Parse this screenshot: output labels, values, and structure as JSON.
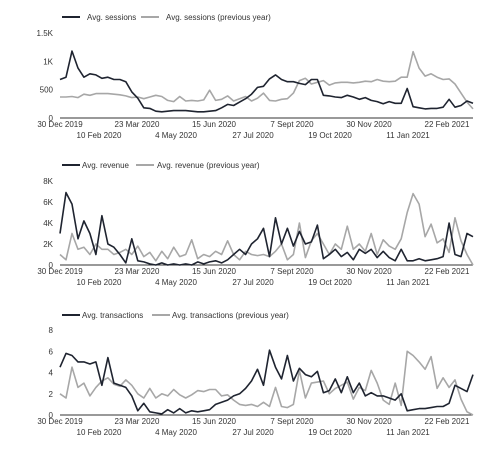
{
  "colors": {
    "current": "#1f2430",
    "previous": "#a7a7a7",
    "axis": "#333333",
    "label": "#333333"
  },
  "chart_data": [
    {
      "type": "line",
      "title": "",
      "xlabel": "",
      "ylabel": "",
      "legend_position": "top-left",
      "grid": false,
      "x_tick_labels": [
        "30 Dec 2019",
        "10 Feb 2020",
        "23 Mar 2020",
        "4 May 2020",
        "15 Jun 2020",
        "27 Jul 2020",
        "7 Sept 2020",
        "19 Oct 2020",
        "30 Nov 2020",
        "11 Jan 2021",
        "22 Feb 2021"
      ],
      "y_ticks": [
        0,
        500,
        1000,
        1500
      ],
      "y_tick_labels": [
        "0",
        "500",
        "1K",
        "1.5K"
      ],
      "ylim": [
        0,
        1500
      ],
      "series": [
        {
          "name": "Avg. sessions",
          "values": [
            680,
            720,
            1180,
            880,
            720,
            780,
            760,
            700,
            720,
            680,
            680,
            640,
            460,
            350,
            180,
            170,
            120,
            110,
            120,
            130,
            130,
            130,
            120,
            110,
            110,
            120,
            130,
            180,
            240,
            220,
            280,
            340,
            420,
            540,
            560,
            690,
            760,
            680,
            640,
            640,
            610,
            590,
            680,
            680,
            400,
            390,
            370,
            360,
            400,
            370,
            330,
            360,
            310,
            290,
            250,
            290,
            260,
            260,
            520,
            200,
            180,
            160,
            170,
            170,
            190,
            330,
            190,
            220,
            300,
            260
          ]
        },
        {
          "name": "Avg. sessions (previous year)",
          "values": [
            370,
            370,
            380,
            360,
            420,
            400,
            430,
            430,
            430,
            420,
            410,
            390,
            360,
            370,
            340,
            370,
            400,
            380,
            310,
            290,
            380,
            300,
            310,
            300,
            320,
            490,
            310,
            330,
            390,
            300,
            340,
            380,
            300,
            350,
            440,
            310,
            300,
            330,
            340,
            440,
            660,
            700,
            600,
            630,
            660,
            580,
            620,
            630,
            630,
            620,
            630,
            650,
            640,
            680,
            650,
            640,
            650,
            720,
            720,
            1170,
            880,
            740,
            780,
            720,
            680,
            690,
            600,
            440,
            280,
            160
          ]
        }
      ]
    },
    {
      "type": "line",
      "title": "",
      "xlabel": "",
      "ylabel": "",
      "legend_position": "top-left",
      "grid": false,
      "x_tick_labels": [
        "30 Dec 2019",
        "10 Feb 2020",
        "23 Mar 2020",
        "4 May 2020",
        "15 Jun 2020",
        "27 Jul 2020",
        "7 Sept 2020",
        "19 Oct 2020",
        "30 Nov 2020",
        "11 Jan 2021",
        "22 Feb 2021"
      ],
      "y_ticks": [
        0,
        2000,
        4000,
        6000,
        8000
      ],
      "y_tick_labels": [
        "0",
        "2K",
        "4K",
        "6K",
        "8K"
      ],
      "ylim": [
        0,
        8000
      ],
      "series": [
        {
          "name": "Avg. revenue",
          "values": [
            3000,
            6900,
            5800,
            2500,
            4200,
            3000,
            1000,
            4700,
            2000,
            1700,
            1000,
            200,
            2500,
            400,
            300,
            100,
            0,
            200,
            0,
            100,
            0,
            100,
            0,
            300,
            100,
            300,
            400,
            200,
            500,
            1000,
            1500,
            1000,
            2000,
            2500,
            3500,
            800,
            4500,
            2000,
            3500,
            1800,
            3200,
            2000,
            2200,
            3800,
            600,
            1000,
            1500,
            800,
            1200,
            500,
            1500,
            1100,
            1500,
            700,
            1300,
            700,
            400,
            1500,
            400,
            400,
            600,
            400,
            500,
            600,
            800,
            4000,
            1000,
            800,
            3000,
            2700
          ]
        },
        {
          "name": "Avg. revenue (previous year)",
          "values": [
            1000,
            500,
            3000,
            1500,
            1700,
            1000,
            2000,
            1500,
            1500,
            1000,
            1200,
            1500,
            1000,
            1800,
            800,
            1200,
            400,
            1300,
            600,
            1700,
            800,
            1000,
            2400,
            600,
            1000,
            800,
            1300,
            1000,
            2300,
            1000,
            500,
            1300,
            1000,
            900,
            1000,
            800,
            1300,
            2000,
            500,
            1000,
            4000,
            700,
            2300,
            3000,
            2000,
            1000,
            2000,
            1500,
            3700,
            1500,
            2000,
            1300,
            3000,
            1000,
            2400,
            1800,
            1500,
            2500,
            5000,
            6800,
            5800,
            2700,
            3900,
            2100,
            2500,
            1200,
            4500,
            2300,
            1000,
            0
          ]
        }
      ]
    },
    {
      "type": "line",
      "title": "",
      "xlabel": "",
      "ylabel": "",
      "legend_position": "top-left",
      "grid": false,
      "x_tick_labels": [
        "30 Dec 2019",
        "10 Feb 2020",
        "23 Mar 2020",
        "4 May 2020",
        "15 Jun 2020",
        "27 Jul 2020",
        "7 Sept 2020",
        "19 Oct 2020",
        "30 Nov 2020",
        "11 Jan 2021",
        "22 Feb 2021"
      ],
      "y_ticks": [
        0,
        2,
        4,
        6,
        8
      ],
      "y_tick_labels": [
        "0",
        "2",
        "4",
        "6",
        "8"
      ],
      "ylim": [
        0,
        8
      ],
      "series": [
        {
          "name": "Avg. transactions",
          "values": [
            4.5,
            5.8,
            5.6,
            5.0,
            5.0,
            4.8,
            5.0,
            2.8,
            5.4,
            3.0,
            2.8,
            2.6,
            1.8,
            0.4,
            1.1,
            0.3,
            0.2,
            0.1,
            0.5,
            0.2,
            0.6,
            0.2,
            0.4,
            0.3,
            0.4,
            0.5,
            1.0,
            1.2,
            1.4,
            1.8,
            2.0,
            2.5,
            3.2,
            4.3,
            2.8,
            6.1,
            4.5,
            3.4,
            5.6,
            3.2,
            4.4,
            3.8,
            3.6,
            4.1,
            2.1,
            2.3,
            3.4,
            2.1,
            3.6,
            2.1,
            3.0,
            1.8,
            2.1,
            1.8,
            1.8,
            1.6,
            1.4,
            2.0,
            0.4,
            0.5,
            0.6,
            0.6,
            0.7,
            0.8,
            0.8,
            1.1,
            2.8,
            2.5,
            2.2,
            3.8
          ]
        },
        {
          "name": "Avg. transactions (previous year)",
          "values": [
            2.0,
            1.6,
            4.5,
            2.6,
            3.0,
            1.8,
            2.6,
            3.2,
            3.5,
            2.9,
            2.7,
            3.3,
            2.8,
            2.0,
            1.6,
            2.5,
            1.6,
            2.0,
            1.8,
            2.4,
            1.9,
            1.6,
            1.9,
            2.3,
            2.2,
            2.4,
            2.4,
            1.8,
            1.9,
            1.4,
            1.0,
            0.9,
            1.0,
            0.8,
            1.2,
            0.8,
            2.6,
            0.8,
            0.7,
            1.0,
            4.2,
            1.6,
            3.0,
            3.1,
            3.2,
            2.0,
            2.5,
            2.8,
            3.1,
            1.5,
            2.6,
            2.3,
            4.2,
            3.0,
            1.4,
            1.0,
            3.0,
            0.9,
            6.0,
            5.6,
            5.0,
            4.3,
            5.5,
            2.5,
            3.5,
            2.6,
            3.3,
            1.5,
            0.3,
            0.0
          ]
        }
      ]
    }
  ]
}
